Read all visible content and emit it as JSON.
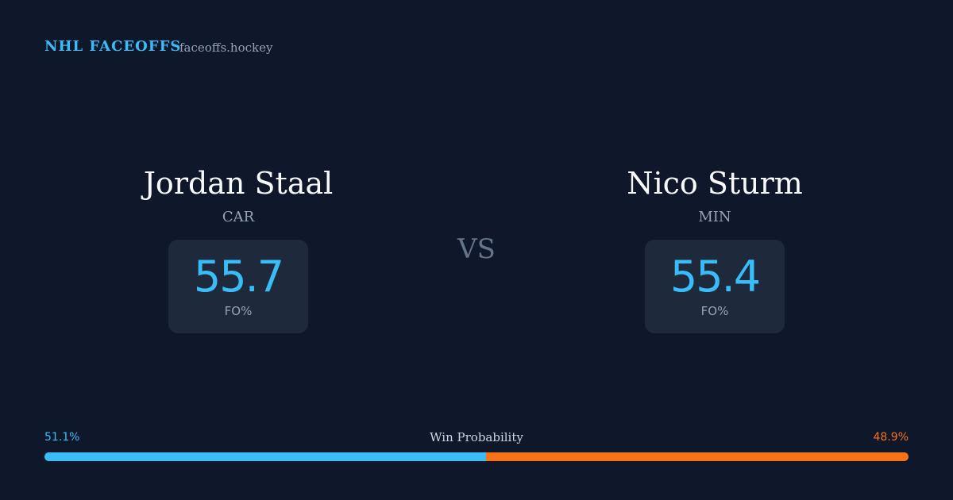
{
  "header": {
    "title": "NHL FACEOFFS",
    "site": "faceoffs.hockey"
  },
  "players": [
    {
      "name": "Jordan Staal",
      "team": "CAR",
      "fo": 55.7,
      "fo_label": "FO%"
    },
    {
      "name": "Nico Sturm",
      "team": "MIN",
      "fo": 55.4,
      "fo_label": "FO%"
    }
  ],
  "vs": "VS",
  "win_probability": {
    "label": "Win Probability",
    "values": [
      51.1,
      48.9
    ],
    "value_labels": [
      "51.1%",
      "48.9%"
    ],
    "colors": [
      "#38bdf8",
      "#f97316"
    ]
  }
}
